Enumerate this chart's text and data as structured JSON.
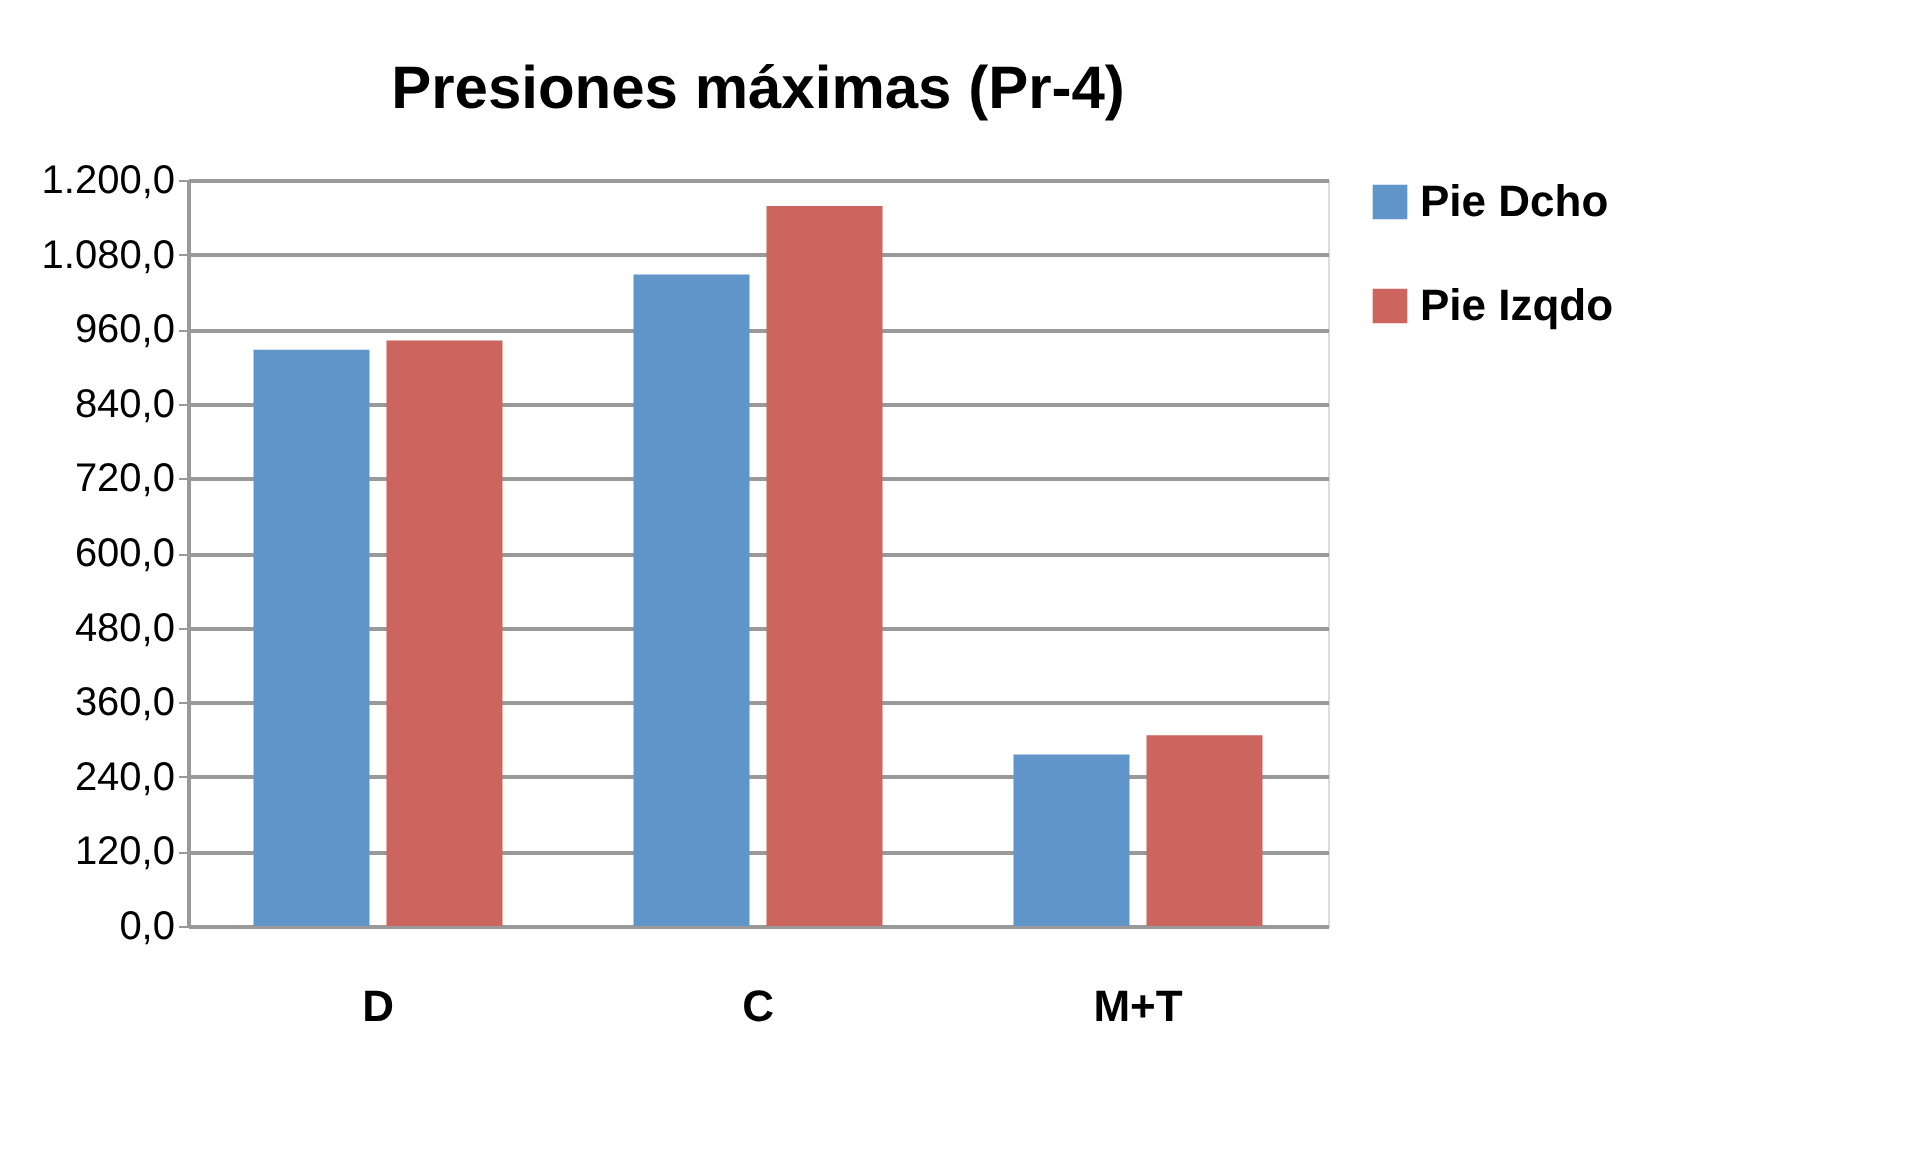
{
  "chart_data": {
    "type": "bar",
    "title": "Presiones máximas (Pr-4)",
    "categories": [
      "D",
      "C",
      "M+T"
    ],
    "series": [
      {
        "name": "Pie Dcho",
        "color": "#5f95c9",
        "values": [
          927,
          1048,
          276
        ]
      },
      {
        "name": "Pie Izqdo",
        "color": "#cc655e",
        "values": [
          942,
          1158,
          307
        ]
      }
    ],
    "ylim": [
      0,
      1200
    ],
    "yticks": [
      {
        "value": 0,
        "label": "0,0"
      },
      {
        "value": 120,
        "label": "120,0"
      },
      {
        "value": 240,
        "label": "240,0"
      },
      {
        "value": 360,
        "label": "360,0"
      },
      {
        "value": 480,
        "label": "480,0"
      },
      {
        "value": 600,
        "label": "600,0"
      },
      {
        "value": 720,
        "label": "720,0"
      },
      {
        "value": 840,
        "label": "840,0"
      },
      {
        "value": 960,
        "label": "960,0"
      },
      {
        "value": 1080,
        "label": "1.080,0"
      },
      {
        "value": 1200,
        "label": "1.200,0"
      }
    ],
    "grid": "y",
    "legend": "right"
  }
}
